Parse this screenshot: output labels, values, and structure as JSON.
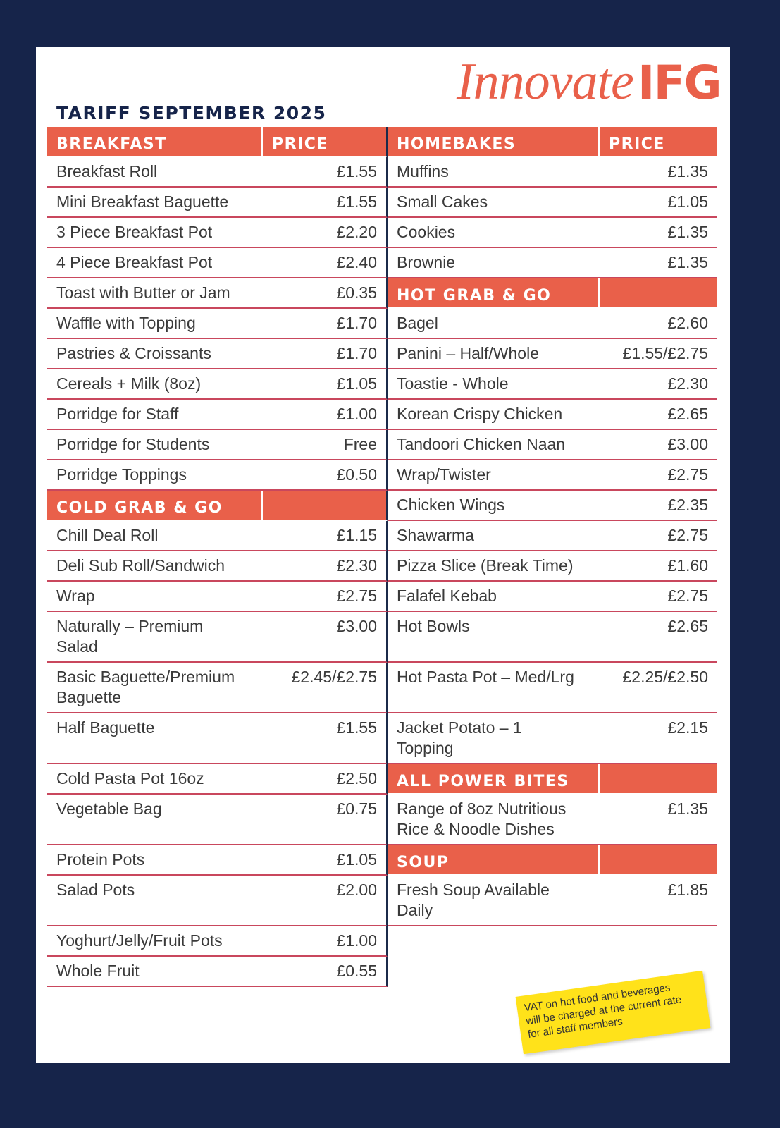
{
  "logo": {
    "script": "Innovate",
    "bold": "IFG"
  },
  "title": "TARIFF SEPTEMBER 2025",
  "columns": [
    {
      "sections": [
        {
          "heading": "BREAKFAST",
          "price_heading": "PRICE",
          "items": [
            {
              "name": "Breakfast Roll",
              "price": "£1.55"
            },
            {
              "name": "Mini Breakfast Baguette",
              "price": "£1.55"
            },
            {
              "name": "3 Piece Breakfast Pot",
              "price": "£2.20"
            },
            {
              "name": "4 Piece Breakfast Pot",
              "price": "£2.40"
            },
            {
              "name": "Toast with Butter or Jam",
              "price": "£0.35"
            },
            {
              "name": "Waffle with Topping",
              "price": "£1.70"
            },
            {
              "name": "Pastries & Croissants",
              "price": "£1.70"
            },
            {
              "name": "Cereals + Milk (8oz)",
              "price": "£1.05"
            },
            {
              "name": "Porridge for Staff",
              "price": "£1.00"
            },
            {
              "name": "Porridge for Students",
              "price": "Free"
            },
            {
              "name": "Porridge Toppings",
              "price": "£0.50"
            }
          ]
        },
        {
          "heading": "COLD GRAB & GO",
          "items": [
            {
              "name": "Chill Deal Roll",
              "price": "£1.15"
            },
            {
              "name": "Deli Sub Roll/Sandwich",
              "price": "£2.30"
            },
            {
              "name": "Wrap",
              "price": "£2.75"
            },
            {
              "name": "Naturally – Premium\nSalad",
              "price": "£3.00"
            },
            {
              "name": "Basic Baguette/Premium\nBaguette",
              "price": "£2.45/£2.75"
            },
            {
              "name": "Half Baguette",
              "price": "£1.55"
            },
            {
              "name": "Cold Pasta Pot 16oz",
              "price": "£2.50"
            },
            {
              "name": "Vegetable Bag",
              "price": "£0.75"
            },
            {
              "name": "Protein Pots",
              "price": "£1.05"
            },
            {
              "name": "Salad Pots",
              "price": "£2.00"
            },
            {
              "name": "Yoghurt/Jelly/Fruit Pots",
              "price": "£1.00"
            },
            {
              "name": "Whole Fruit",
              "price": "£0.55"
            }
          ]
        }
      ]
    },
    {
      "sections": [
        {
          "heading": "HOMEBAKES",
          "price_heading": "PRICE",
          "items": [
            {
              "name": "Muffins",
              "price": "£1.35"
            },
            {
              "name": "Small Cakes",
              "price": "£1.05"
            },
            {
              "name": "Cookies",
              "price": "£1.35"
            },
            {
              "name": "Brownie",
              "price": "£1.35"
            }
          ]
        },
        {
          "heading": "HOT GRAB & GO",
          "items": [
            {
              "name": "Bagel",
              "price": "£2.60"
            },
            {
              "name": "Panini – Half/Whole",
              "price": "£1.55/£2.75"
            },
            {
              "name": "Toastie - Whole",
              "price": "£2.30"
            },
            {
              "name": "Korean Crispy Chicken",
              "price": "£2.65"
            },
            {
              "name": "Tandoori Chicken Naan",
              "price": "£3.00"
            },
            {
              "name": "Wrap/Twister",
              "price": "£2.75"
            },
            {
              "name": "Chicken Wings",
              "price": "£2.35"
            },
            {
              "name": "Shawarma",
              "price": "£2.75"
            },
            {
              "name": "Pizza Slice (Break Time)",
              "price": "£1.60"
            },
            {
              "name": "Falafel Kebab",
              "price": "£2.75"
            },
            {
              "name": "Hot Bowls",
              "price": "£2.65"
            },
            {
              "name": "Hot Pasta Pot – Med/Lrg",
              "price": "£2.25/£2.50"
            },
            {
              "name": "Jacket Potato – 1\nTopping",
              "price": "£2.15"
            }
          ]
        },
        {
          "heading": "ALL POWER BITES",
          "items": [
            {
              "name": "Range of 8oz Nutritious\nRice & Noodle Dishes",
              "price": "£1.35"
            }
          ]
        },
        {
          "heading": "SOUP",
          "items": [
            {
              "name": "Fresh Soup Available\nDaily",
              "price": "£1.85"
            }
          ]
        }
      ]
    }
  ],
  "note": "VAT on hot food and beverages\nwill be charged at the current rate\nfor all staff members"
}
